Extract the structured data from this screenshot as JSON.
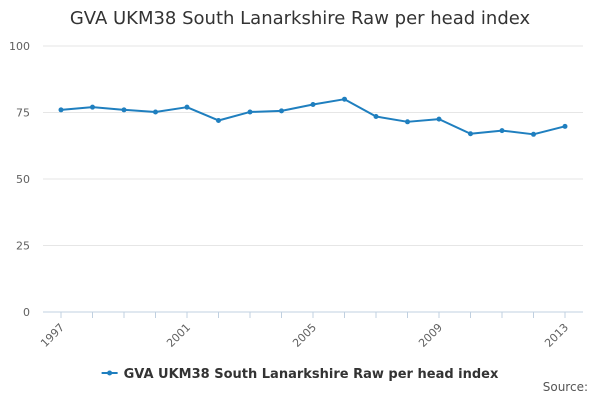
{
  "chart_data": {
    "type": "line",
    "title": "GVA UKM38 South Lanarkshire Raw per head index",
    "xlabel": "",
    "ylabel": "",
    "x": [
      1997,
      1998,
      1999,
      2000,
      2001,
      2002,
      2003,
      2004,
      2005,
      2006,
      2007,
      2008,
      2009,
      2010,
      2011,
      2012,
      2013
    ],
    "x_ticks": [
      "1997",
      "2001",
      "2005",
      "2009",
      "2013"
    ],
    "y_ticks": [
      "0",
      "25",
      "50",
      "75",
      "100"
    ],
    "ylim": [
      0,
      100
    ],
    "grid": true,
    "legend_position": "bottom",
    "series": [
      {
        "name": "GVA UKM38 South Lanarkshire Raw per head index",
        "color": "#1f7fbf",
        "values": [
          76,
          77,
          76,
          75.2,
          77,
          72,
          75.2,
          75.6,
          78,
          80,
          73.5,
          71.5,
          72.5,
          67,
          68.2,
          66.8,
          69.8
        ]
      }
    ]
  },
  "credit": "Source:"
}
